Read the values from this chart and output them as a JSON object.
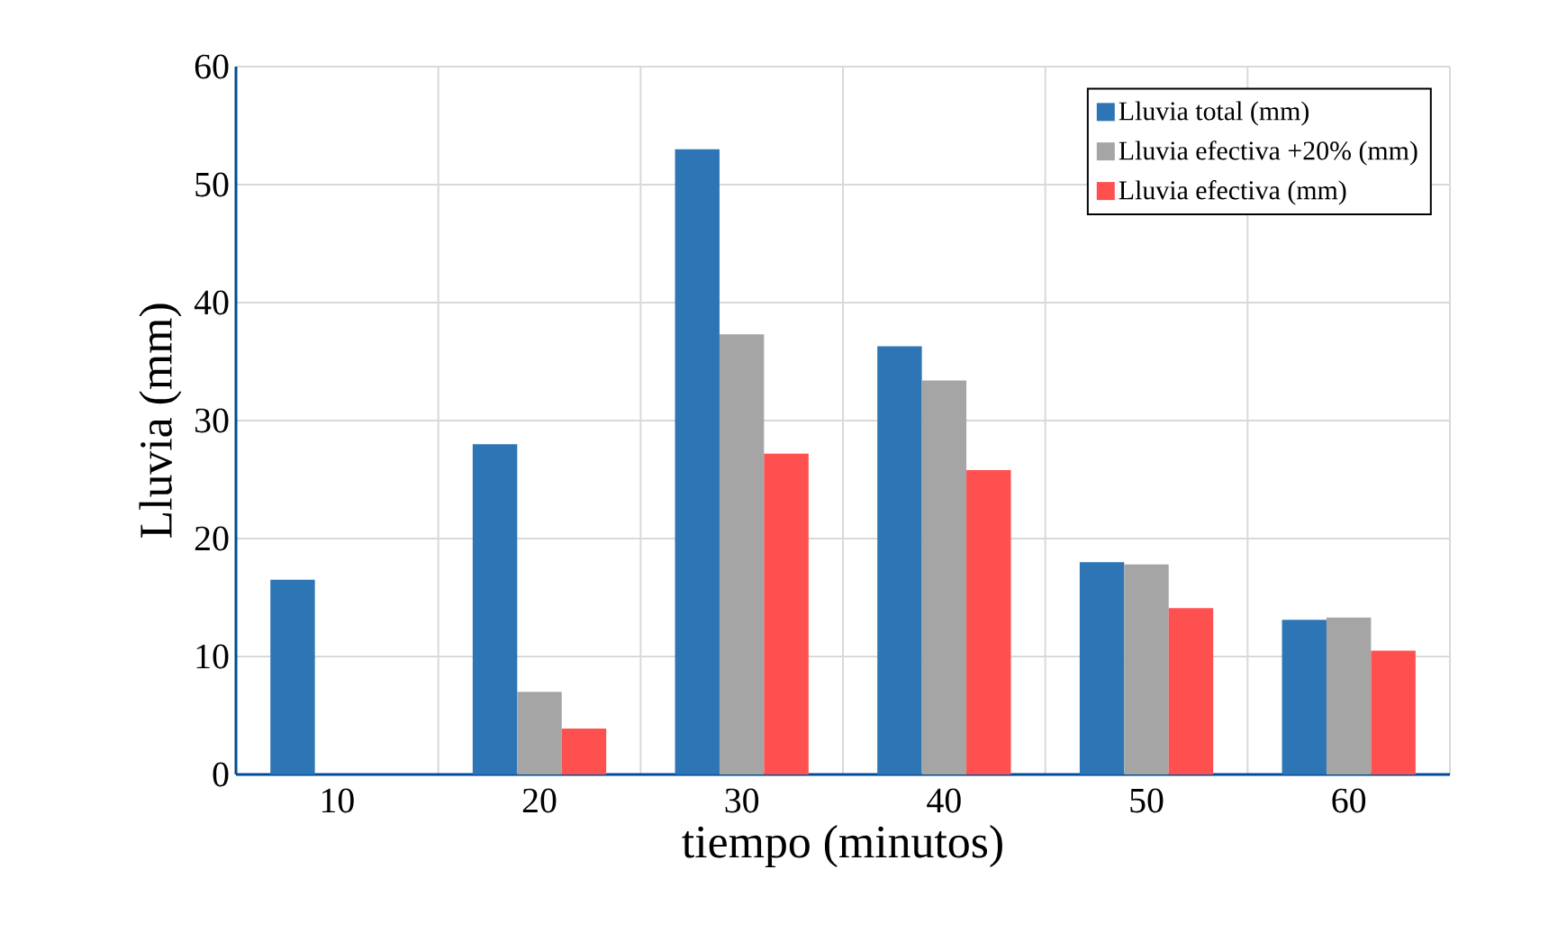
{
  "chart_data": {
    "type": "bar",
    "xlabel": "tiempo (minutos)",
    "ylabel": "Lluvia (mm)",
    "categories": [
      "10",
      "20",
      "30",
      "40",
      "50",
      "60"
    ],
    "series": [
      {
        "name": "Lluvia total (mm)",
        "color": "#2e75b6",
        "values": [
          16.5,
          28.0,
          53.0,
          36.3,
          18.0,
          13.1
        ]
      },
      {
        "name": "Lluvia efectiva +20% (mm)",
        "color": "#a5a5a5",
        "values": [
          0,
          7.0,
          37.3,
          33.4,
          17.8,
          13.3
        ]
      },
      {
        "name": "Lluvia efectiva (mm)",
        "color": "#ff5050",
        "values": [
          0,
          3.9,
          27.2,
          25.8,
          14.1,
          10.5
        ]
      }
    ],
    "ylim": [
      0,
      60
    ],
    "yticks": [
      0,
      10,
      20,
      30,
      40,
      50,
      60
    ],
    "grid": true,
    "legend": "top right"
  }
}
